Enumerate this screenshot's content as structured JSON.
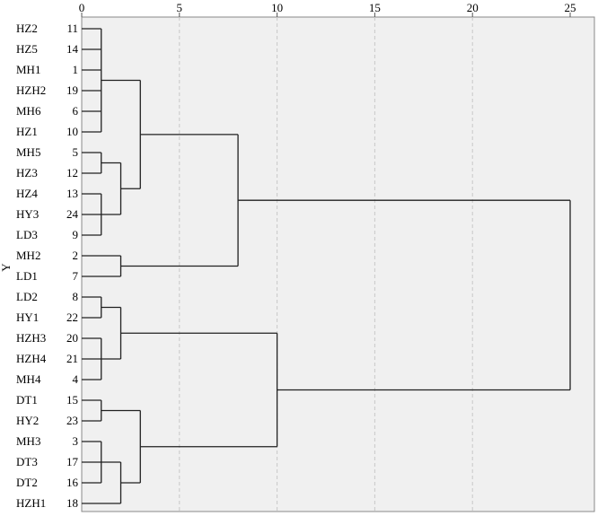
{
  "chart_data": {
    "type": "dendrogram",
    "ylabel": "Y",
    "xlim": [
      0,
      25
    ],
    "x_ticks": [
      0,
      5,
      10,
      15,
      20,
      25
    ],
    "grid": "vertical dashed",
    "leaves": [
      {
        "label": "HZ2",
        "id": "11"
      },
      {
        "label": "HZ5",
        "id": "14"
      },
      {
        "label": "MH1",
        "id": "1"
      },
      {
        "label": "HZH2",
        "id": "19"
      },
      {
        "label": "MH6",
        "id": "6"
      },
      {
        "label": "HZ1",
        "id": "10"
      },
      {
        "label": "MH5",
        "id": "5"
      },
      {
        "label": "HZ3",
        "id": "12"
      },
      {
        "label": "HZ4",
        "id": "13"
      },
      {
        "label": "HY3",
        "id": "24"
      },
      {
        "label": "LD3",
        "id": "9"
      },
      {
        "label": "MH2",
        "id": "2"
      },
      {
        "label": "LD1",
        "id": "7"
      },
      {
        "label": "LD2",
        "id": "8"
      },
      {
        "label": "HY1",
        "id": "22"
      },
      {
        "label": "HZH3",
        "id": "20"
      },
      {
        "label": "HZH4",
        "id": "21"
      },
      {
        "label": "MH4",
        "id": "4"
      },
      {
        "label": "DT1",
        "id": "15"
      },
      {
        "label": "HY2",
        "id": "23"
      },
      {
        "label": "MH3",
        "id": "3"
      },
      {
        "label": "DT3",
        "id": "17"
      },
      {
        "label": "DT2",
        "id": "16"
      },
      {
        "label": "HZH1",
        "id": "18"
      }
    ],
    "merges": [
      {
        "children": [
          0,
          1,
          2,
          3,
          4,
          5
        ],
        "height": 1
      },
      {
        "children": [
          6,
          7
        ],
        "height": 1
      },
      {
        "children": [
          8,
          9,
          10
        ],
        "height": 1
      },
      {
        "children": [
          "m1",
          "m2"
        ],
        "height": 2
      },
      {
        "children": [
          "m0",
          "m3"
        ],
        "height": 3
      },
      {
        "children": [
          11,
          12
        ],
        "height": 2
      },
      {
        "children": [
          "m4",
          "m5"
        ],
        "height": 8
      },
      {
        "children": [
          13,
          14
        ],
        "height": 1
      },
      {
        "children": [
          15,
          16,
          17
        ],
        "height": 1
      },
      {
        "children": [
          "m7",
          "m8"
        ],
        "height": 2
      },
      {
        "children": [
          18,
          19
        ],
        "height": 1
      },
      {
        "children": [
          20,
          21,
          22
        ],
        "height": 1
      },
      {
        "children": [
          "m11",
          23
        ],
        "height": 2
      },
      {
        "children": [
          "m10",
          "m12"
        ],
        "height": 3
      },
      {
        "children": [
          "m9",
          "m13"
        ],
        "height": 10
      },
      {
        "children": [
          "m6",
          "m14"
        ],
        "height": 25
      }
    ]
  },
  "colors": {
    "plot_background": "#f0f0f0",
    "gridline": "#c8c8c8",
    "line": "#202020"
  }
}
